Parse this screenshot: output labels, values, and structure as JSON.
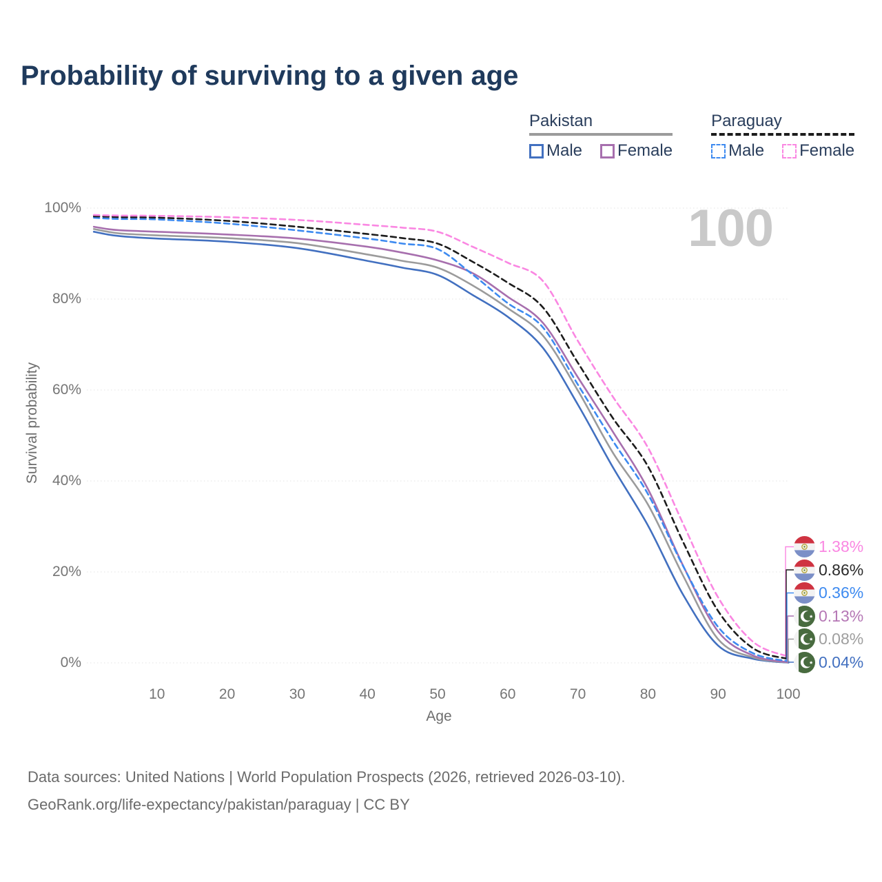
{
  "title": "Probability of surviving to a given age",
  "watermark_age": "100",
  "legend": {
    "groups": [
      {
        "title": "Pakistan",
        "line_style": "solid",
        "underline_color": "#9b9b9b",
        "items": [
          {
            "label": "Male",
            "color": "#4270c0"
          },
          {
            "label": "Female",
            "color": "#a76fae"
          }
        ]
      },
      {
        "title": "Paraguay",
        "line_style": "dashed",
        "underline_color": "#1c1c1c",
        "items": [
          {
            "label": "Male",
            "color": "#3d8af0"
          },
          {
            "label": "Female",
            "color": "#fa87e2"
          }
        ]
      }
    ]
  },
  "chart_data": {
    "type": "line",
    "title": "Probability of surviving to a given age",
    "xlabel": "Age",
    "ylabel": "Survival probability",
    "xlim": [
      0,
      100
    ],
    "ylim": [
      0,
      100
    ],
    "grid": true,
    "x_ticks": [
      10,
      20,
      30,
      40,
      50,
      60,
      70,
      80,
      90,
      100
    ],
    "y_ticks": [
      {
        "label": "0%",
        "value": 0
      },
      {
        "label": "20%",
        "value": 20
      },
      {
        "label": "40%",
        "value": 40
      },
      {
        "label": "60%",
        "value": 60
      },
      {
        "label": "80%",
        "value": 80
      },
      {
        "label": "100%",
        "value": 100
      }
    ],
    "ages": [
      1,
      3,
      5,
      10,
      20,
      30,
      40,
      45,
      50,
      55,
      60,
      65,
      70,
      75,
      80,
      85,
      90,
      95,
      100
    ],
    "series": [
      {
        "name": "Paraguay Female",
        "country": "Paraguay",
        "sex": "Female",
        "color": "#fa87e2",
        "dash": true,
        "values": [
          98.5,
          98.4,
          98.35,
          98.3,
          98.0,
          97.4,
          96.3,
          95.7,
          94.8,
          91.5,
          88.0,
          84.0,
          70.8,
          58.5,
          47.3,
          30.6,
          14.4,
          4.6,
          1.38
        ]
      },
      {
        "name": "Paraguay Both sexes",
        "country": "Paraguay",
        "sex": "Both",
        "color": "#1c1c1c",
        "dash": true,
        "values": [
          98.2,
          98.1,
          98.0,
          97.9,
          97.2,
          95.9,
          94.3,
          93.4,
          92.2,
          88.2,
          83.6,
          78.2,
          66.0,
          53.8,
          43.2,
          26.6,
          11.4,
          3.2,
          0.86
        ]
      },
      {
        "name": "Paraguay Male",
        "country": "Paraguay",
        "sex": "Male",
        "color": "#3d8af0",
        "dash": true,
        "values": [
          97.9,
          97.7,
          97.6,
          97.5,
          96.6,
          95.1,
          93.3,
          92.2,
          91.0,
          85.4,
          79.1,
          73.8,
          61.2,
          48.8,
          37.1,
          21.3,
          7.9,
          2.1,
          0.36
        ]
      },
      {
        "name": "Pakistan Female",
        "country": "Pakistan",
        "sex": "Female",
        "color": "#a76fae",
        "dash": false,
        "values": [
          95.9,
          95.4,
          95.1,
          94.8,
          94.2,
          93.3,
          91.5,
          90.2,
          88.5,
          85.7,
          80.5,
          74.8,
          62.8,
          50.8,
          38.2,
          21.4,
          6.9,
          1.6,
          0.13
        ]
      },
      {
        "name": "Pakistan Both sexes",
        "country": "Pakistan",
        "sex": "Both",
        "color": "#9b9b9b",
        "dash": false,
        "values": [
          95.4,
          94.8,
          94.4,
          94.0,
          93.4,
          92.3,
          89.8,
          88.4,
          86.9,
          83.0,
          78.0,
          72.0,
          59.9,
          46.2,
          34.8,
          19.2,
          5.2,
          1.2,
          0.08
        ]
      },
      {
        "name": "Pakistan Male",
        "country": "Pakistan",
        "sex": "Male",
        "color": "#4270c0",
        "dash": false,
        "values": [
          94.8,
          94.2,
          93.8,
          93.3,
          92.6,
          91.2,
          88.4,
          86.9,
          85.3,
          80.9,
          76.1,
          69.3,
          56.8,
          43.0,
          30.2,
          15.0,
          3.8,
          0.9,
          0.04
        ]
      }
    ]
  },
  "end_labels": [
    {
      "flag": "paraguay",
      "value": "1.38%",
      "color": "#fa87e2"
    },
    {
      "flag": "paraguay",
      "value": "0.86%",
      "color": "#2a2a2a"
    },
    {
      "flag": "paraguay",
      "value": "0.36%",
      "color": "#3d8af0"
    },
    {
      "flag": "pakistan",
      "value": "0.13%",
      "color": "#b577b5"
    },
    {
      "flag": "pakistan",
      "value": "0.08%",
      "color": "#9e9e9e"
    },
    {
      "flag": "pakistan",
      "value": "0.04%",
      "color": "#4270c0"
    }
  ],
  "footer": {
    "line1": "Data sources: United Nations | World Population Prospects (2026, retrieved 2026-03-10).",
    "line2": "GeoRank.org/life-expectancy/pakistan/paraguay | CC BY"
  }
}
